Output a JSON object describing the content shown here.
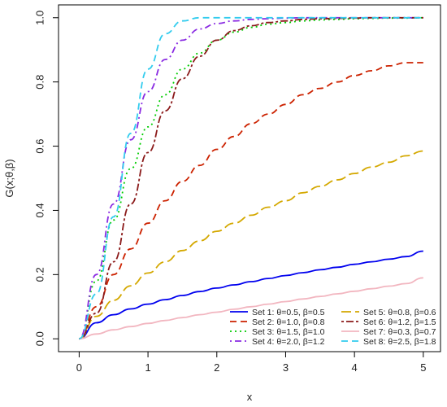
{
  "chart_data": {
    "type": "line",
    "title": "",
    "xlabel": "x",
    "ylabel": "G(x;θ,β)",
    "xlim": [
      0,
      5
    ],
    "ylim": [
      0,
      1
    ],
    "x_ticks": [
      "0",
      "1",
      "2",
      "3",
      "4",
      "5"
    ],
    "y_ticks": [
      "0.0",
      "0.2",
      "0.4",
      "0.6",
      "0.8",
      "1.0"
    ],
    "grid": false,
    "legend_position": "bottom-right",
    "x": [
      0,
      0.25,
      0.5,
      0.75,
      1,
      1.25,
      1.5,
      1.75,
      2,
      2.25,
      2.5,
      2.75,
      3,
      3.25,
      3.5,
      3.75,
      4,
      4.25,
      4.5,
      4.75,
      5
    ],
    "series": [
      {
        "name": "Set 1: θ=0.5, β=0.5",
        "color": "#0000ee",
        "dash": "solid",
        "values": [
          0,
          0.05,
          0.075,
          0.093,
          0.108,
          0.122,
          0.135,
          0.147,
          0.158,
          0.168,
          0.178,
          0.188,
          0.197,
          0.206,
          0.215,
          0.223,
          0.232,
          0.24,
          0.248,
          0.256,
          0.273
        ]
      },
      {
        "name": "Set 2: θ=1.0, β=0.8",
        "color": "#cc2200",
        "dash": "dashed",
        "values": [
          0,
          0.1,
          0.2,
          0.28,
          0.36,
          0.43,
          0.49,
          0.54,
          0.59,
          0.63,
          0.67,
          0.7,
          0.73,
          0.76,
          0.78,
          0.8,
          0.82,
          0.835,
          0.85,
          0.86,
          0.86
        ]
      },
      {
        "name": "Set 3: θ=1.5, β=1.0",
        "color": "#00cc00",
        "dash": "dotted",
        "values": [
          0,
          0.18,
          0.37,
          0.53,
          0.66,
          0.76,
          0.84,
          0.89,
          0.93,
          0.955,
          0.97,
          0.98,
          0.985,
          0.99,
          0.993,
          0.995,
          0.997,
          0.998,
          0.999,
          0.999,
          1.0
        ]
      },
      {
        "name": "Set 4: θ=2.0, β=1.2",
        "color": "#8a2be2",
        "dash": "dashdot",
        "values": [
          0,
          0.2,
          0.42,
          0.62,
          0.77,
          0.87,
          0.93,
          0.965,
          0.982,
          0.99,
          0.995,
          0.997,
          0.999,
          1.0,
          1.0,
          1.0,
          1.0,
          1.0,
          1.0,
          1.0,
          1.0
        ]
      },
      {
        "name": "Set 5: θ=0.8, β=0.6",
        "color": "#d4a800",
        "dash": "longdash",
        "values": [
          0,
          0.07,
          0.12,
          0.165,
          0.205,
          0.24,
          0.275,
          0.305,
          0.335,
          0.36,
          0.385,
          0.41,
          0.43,
          0.455,
          0.475,
          0.495,
          0.515,
          0.535,
          0.55,
          0.57,
          0.585
        ]
      },
      {
        "name": "Set 6: θ=1.2, β=1.5",
        "color": "#8b1a1a",
        "dash": "twodash",
        "values": [
          0,
          0.08,
          0.24,
          0.42,
          0.58,
          0.71,
          0.81,
          0.88,
          0.93,
          0.96,
          0.975,
          0.985,
          0.99,
          0.995,
          0.997,
          0.998,
          0.999,
          1.0,
          1.0,
          1.0,
          1.0
        ]
      },
      {
        "name": "Set 7: θ=0.3, β=0.7",
        "color": "#f2b6c0",
        "dash": "solid",
        "values": [
          0,
          0.015,
          0.028,
          0.038,
          0.048,
          0.057,
          0.066,
          0.075,
          0.083,
          0.092,
          0.1,
          0.108,
          0.116,
          0.124,
          0.132,
          0.14,
          0.148,
          0.156,
          0.164,
          0.172,
          0.19
        ]
      },
      {
        "name": "Set 8: θ=2.5, β=1.8",
        "color": "#33ccee",
        "dash": "dashed",
        "values": [
          0,
          0.14,
          0.38,
          0.64,
          0.84,
          0.95,
          0.99,
          1.0,
          1.0,
          1.0,
          1.0,
          1.0,
          1.0,
          1.0,
          1.0,
          1.0,
          1.0,
          1.0,
          1.0,
          1.0,
          1.0
        ]
      }
    ]
  }
}
